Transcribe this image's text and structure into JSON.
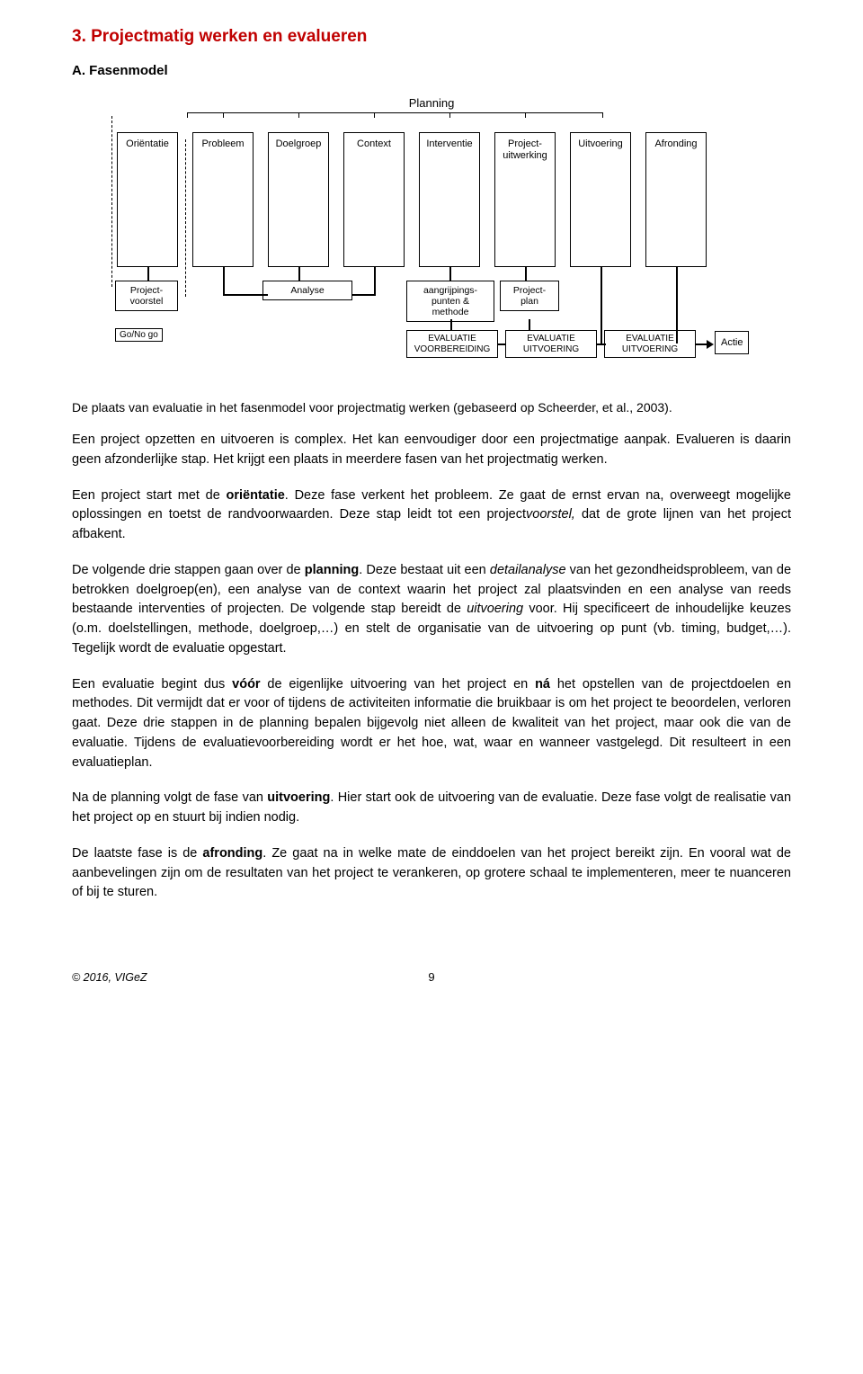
{
  "heading": "3.  Projectmatig werken en evalueren",
  "subheading": "A. Fasenmodel",
  "diagram": {
    "planning_label": "Planning",
    "phases": [
      "Oriëntatie",
      "Probleem",
      "Doelgroep",
      "Context",
      "Interventie",
      "Project-\nuitwerking",
      "Uitvoering",
      "Afronding"
    ],
    "row2": [
      "Project-\nvoorstel",
      "Analyse",
      "aangrijpings-\npunten &\nmethode",
      "Project-\nplan"
    ],
    "gonogo": "Go/No go",
    "eval": [
      "EVALUATIE\nVOORBEREIDING",
      "EVALUATIE\nUITVOERING",
      "EVALUATIE\nUITVOERING"
    ],
    "actie": "Actie"
  },
  "caption": "De plaats van evaluatie in het fasenmodel voor projectmatig werken (gebaseerd op Scheerder, et al., 2003).",
  "para1a": "Een project opzetten en uitvoeren is complex. Het kan eenvoudiger door een projectmatige aanpak. Evalueren is daarin geen afzonderlijke stap. Het krijgt een plaats in meerdere fasen van het projectmatig werken.",
  "para2a": "Een project start met de ",
  "para2b": "oriëntatie",
  "para2c": ". Deze fase verkent het probleem. Ze gaat de ernst ervan na, overweegt mogelijke oplossingen en toetst de randvoorwaarden. Deze stap leidt tot een project",
  "para2d": "voorstel,",
  "para2e": " dat de grote lijnen van het project afbakent.",
  "para3a": "De volgende drie stappen gaan over de ",
  "para3b": "planning",
  "para3c": ". Deze bestaat uit een ",
  "para3d": "detailanalyse",
  "para3e": " van het gezondheidsprobleem, van de betrokken doelgroep(en), een analyse van de context waarin het project zal plaatsvinden en een analyse van reeds bestaande interventies of projecten. De volgende stap bereidt de ",
  "para3f": "uitvoering",
  "para3g": " voor. Hij specificeert de inhoudelijke keuzes (o.m. doelstellingen, methode, doelgroep,…) en stelt de organisatie van de uitvoering op punt (vb. timing, budget,…). Tegelijk wordt de evaluatie opgestart.",
  "para4a": "Een evaluatie begint dus ",
  "para4b": "vóór",
  "para4c": " de eigenlijke uitvoering van het project en ",
  "para4d": "ná",
  "para4e": " het opstellen van de projectdoelen en methodes. Dit vermijdt dat er voor of tijdens de activiteiten informatie die bruikbaar is om het project te beoordelen, verloren gaat. Deze drie stappen in de planning bepalen bijgevolg niet alleen de kwaliteit van het project, maar ook die van de evaluatie. Tijdens de evaluatievoorbereiding wordt er het hoe, wat, waar en wanneer vastgelegd. Dit resulteert in een evaluatieplan.",
  "para5a": "Na de planning volgt de fase van ",
  "para5b": "uitvoering",
  "para5c": ". Hier start ook de uitvoering van de evaluatie. Deze fase volgt de realisatie van het project op en stuurt bij indien nodig.",
  "para6a": "De laatste fase is de ",
  "para6b": "afronding",
  "para6c": ". Ze gaat na in welke mate de einddoelen van het project bereikt zijn. En vooral wat de aanbevelingen zijn om de resultaten van het project te verankeren, op grotere schaal te implementeren, meer te nuanceren of bij te sturen.",
  "copyright": "© 2016, VIGeZ",
  "pagenum": "9"
}
